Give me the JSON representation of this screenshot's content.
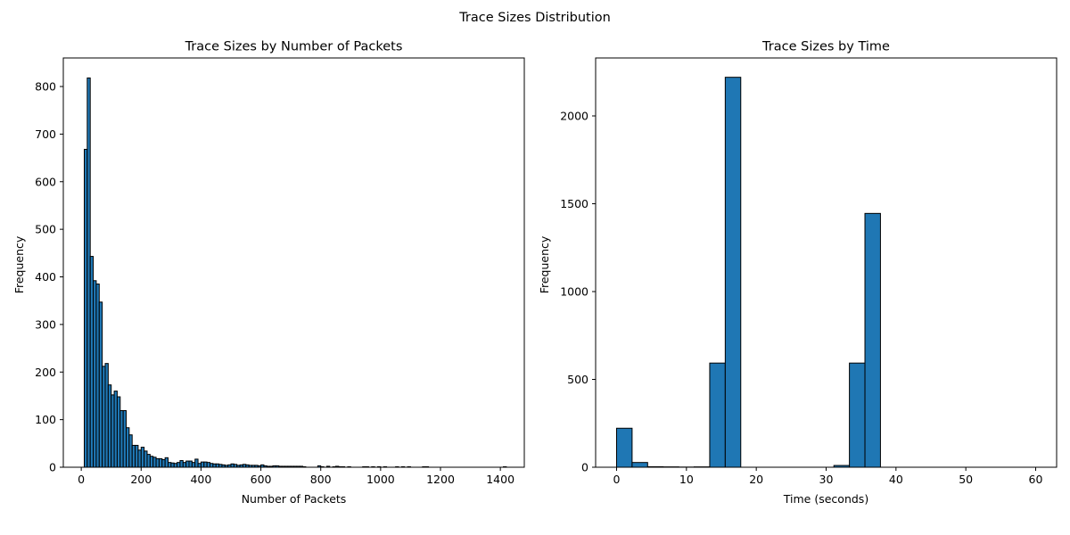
{
  "figure": {
    "title": "Trace Sizes Distribution"
  },
  "chart_data": [
    {
      "type": "bar",
      "title": "Trace Sizes by Number of Packets",
      "xlabel": "Number of Packets",
      "ylabel": "Frequency",
      "xlim": [
        -60,
        1480
      ],
      "ylim": [
        0,
        860
      ],
      "xticks": [
        0,
        200,
        400,
        600,
        800,
        1000,
        1200,
        1400
      ],
      "yticks": [
        0,
        100,
        200,
        300,
        400,
        500,
        600,
        700,
        800
      ],
      "bin_width": 10,
      "bins": [
        [
          10,
          668
        ],
        [
          20,
          818
        ],
        [
          30,
          443
        ],
        [
          40,
          392
        ],
        [
          50,
          385
        ],
        [
          60,
          347
        ],
        [
          70,
          212
        ],
        [
          80,
          218
        ],
        [
          90,
          173
        ],
        [
          100,
          152
        ],
        [
          110,
          160
        ],
        [
          120,
          148
        ],
        [
          130,
          119
        ],
        [
          140,
          119
        ],
        [
          150,
          83
        ],
        [
          160,
          68
        ],
        [
          170,
          46
        ],
        [
          180,
          46
        ],
        [
          190,
          36
        ],
        [
          200,
          42
        ],
        [
          210,
          34
        ],
        [
          220,
          27
        ],
        [
          230,
          23
        ],
        [
          240,
          21
        ],
        [
          250,
          18
        ],
        [
          260,
          18
        ],
        [
          270,
          16
        ],
        [
          280,
          20
        ],
        [
          290,
          10
        ],
        [
          300,
          9
        ],
        [
          310,
          8
        ],
        [
          320,
          10
        ],
        [
          330,
          14
        ],
        [
          340,
          10
        ],
        [
          350,
          13
        ],
        [
          360,
          13
        ],
        [
          370,
          10
        ],
        [
          380,
          17
        ],
        [
          390,
          8
        ],
        [
          400,
          11
        ],
        [
          410,
          11
        ],
        [
          420,
          10
        ],
        [
          430,
          8
        ],
        [
          440,
          7
        ],
        [
          450,
          7
        ],
        [
          460,
          6
        ],
        [
          470,
          5
        ],
        [
          480,
          4
        ],
        [
          490,
          5
        ],
        [
          500,
          7
        ],
        [
          510,
          6
        ],
        [
          520,
          4
        ],
        [
          530,
          5
        ],
        [
          540,
          6
        ],
        [
          550,
          5
        ],
        [
          560,
          4
        ],
        [
          570,
          4
        ],
        [
          580,
          4
        ],
        [
          590,
          3
        ],
        [
          600,
          5
        ],
        [
          610,
          3
        ],
        [
          620,
          2
        ],
        [
          630,
          2
        ],
        [
          640,
          3
        ],
        [
          650,
          3
        ],
        [
          660,
          2
        ],
        [
          670,
          2
        ],
        [
          680,
          2
        ],
        [
          690,
          2
        ],
        [
          700,
          2
        ],
        [
          710,
          2
        ],
        [
          720,
          2
        ],
        [
          730,
          2
        ],
        [
          740,
          1
        ],
        [
          790,
          3
        ],
        [
          800,
          1
        ],
        [
          820,
          2
        ],
        [
          840,
          1
        ],
        [
          850,
          2
        ],
        [
          860,
          1
        ],
        [
          870,
          1
        ],
        [
          890,
          1
        ],
        [
          940,
          1
        ],
        [
          950,
          1
        ],
        [
          970,
          1
        ],
        [
          990,
          1
        ],
        [
          1010,
          1
        ],
        [
          1050,
          1
        ],
        [
          1070,
          1
        ],
        [
          1090,
          1
        ],
        [
          1140,
          1
        ],
        [
          1150,
          1
        ],
        [
          1410,
          1
        ]
      ]
    },
    {
      "type": "bar",
      "title": "Trace Sizes by Time",
      "xlabel": "Time (seconds)",
      "ylabel": "Frequency",
      "xlim": [
        -3,
        63
      ],
      "ylim": [
        0,
        2330
      ],
      "xticks": [
        0,
        10,
        20,
        30,
        40,
        50,
        60
      ],
      "yticks": [
        0,
        500,
        1000,
        1500,
        2000
      ],
      "bin_width": 2.222,
      "bins": [
        [
          0,
          222
        ],
        [
          2.222,
          27
        ],
        [
          4.444,
          3
        ],
        [
          6.667,
          2
        ],
        [
          8.889,
          1
        ],
        [
          11.111,
          2
        ],
        [
          13.333,
          593
        ],
        [
          15.556,
          2220
        ],
        [
          17.778,
          0
        ],
        [
          20,
          0
        ],
        [
          22.222,
          0
        ],
        [
          24.444,
          0
        ],
        [
          26.667,
          0
        ],
        [
          28.889,
          0
        ],
        [
          31.111,
          10
        ],
        [
          33.333,
          593
        ],
        [
          35.556,
          1445
        ],
        [
          37.778,
          0
        ]
      ]
    }
  ]
}
